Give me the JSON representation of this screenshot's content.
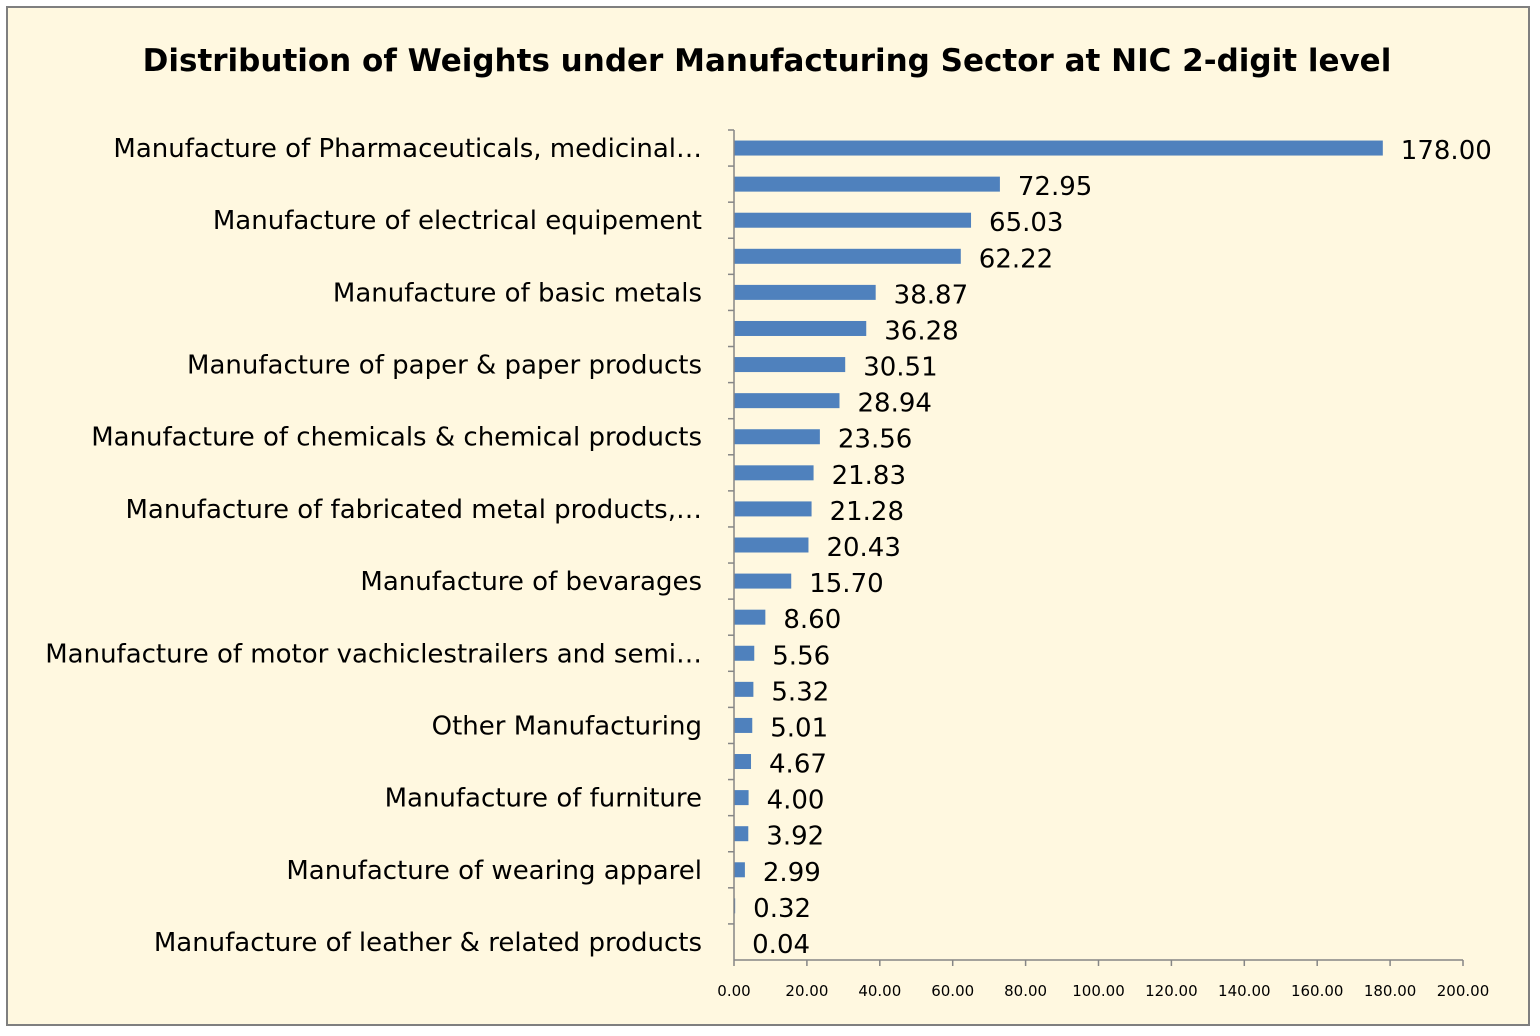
{
  "chart_data": {
    "type": "bar",
    "orientation": "horizontal",
    "title": "Distribution of Weights under Manufacturing Sector at NIC 2-digit level",
    "xlabel": "",
    "ylabel": "",
    "xlim": [
      0,
      200
    ],
    "x_ticks": [
      "0.00",
      "20.00",
      "40.00",
      "60.00",
      "80.00",
      "100.00",
      "120.00",
      "140.00",
      "160.00",
      "180.00",
      "200.00"
    ],
    "grid": false,
    "legend": "none",
    "bar_color": "#4f81bd",
    "background_color": "#fff8e0",
    "categories": [
      "Manufacture of Pharmaceuticals, medicinal…",
      "",
      "Manufacture of electrical equipement",
      "",
      "Manufacture of basic metals",
      "",
      "Manufacture of paper & paper products",
      "",
      "Manufacture of chemicals & chemical products",
      "",
      "Manufacture of fabricated metal products,…",
      "",
      "Manufacture of bevarages",
      "",
      "Manufacture of motor vachiclestrailers and semi…",
      "",
      "Other Manufacturing",
      "",
      "Manufacture of furniture",
      "",
      "Manufacture of wearing apparel",
      "",
      "Manufacture of leather & related products"
    ],
    "values": [
      178.0,
      72.95,
      65.03,
      62.22,
      38.87,
      36.28,
      30.51,
      28.94,
      23.56,
      21.83,
      21.28,
      20.43,
      15.7,
      8.6,
      5.56,
      5.32,
      5.01,
      4.67,
      4.0,
      3.92,
      2.99,
      0.32,
      0.04
    ],
    "value_labels": [
      "178.00",
      "72.95",
      "65.03",
      "62.22",
      "38.87",
      "36.28",
      "30.51",
      "28.94",
      "23.56",
      "21.83",
      "21.28",
      "20.43",
      "15.70",
      "8.60",
      "5.56",
      "5.32",
      "5.01",
      "4.67",
      "4.00",
      "3.92",
      "2.99",
      "0.32",
      "0.04"
    ]
  }
}
